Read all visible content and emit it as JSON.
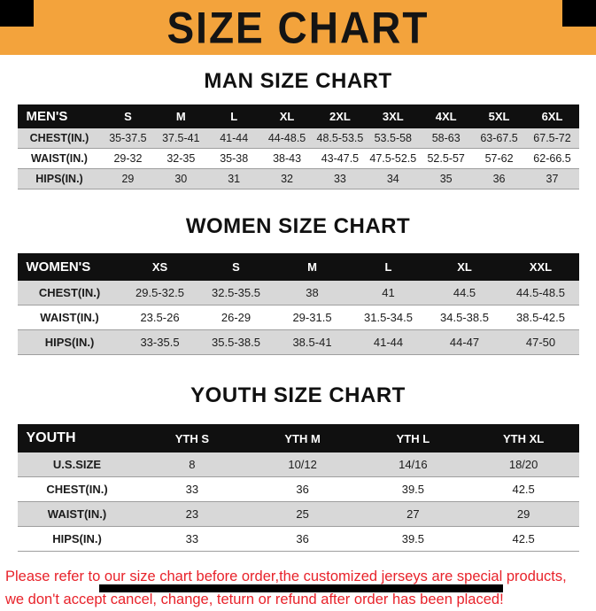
{
  "page": {
    "title": "SIZE CHART",
    "footer_line1": "Please refer to our size chart before order,the customized jerseys are special products,",
    "footer_line2": "we don't accept cancel, change, teturn or refund after order has been placed!"
  },
  "colors": {
    "banner_bg": "#F3A33C",
    "banner_corner": "#000000",
    "table_header_bg": "#101010",
    "table_header_text": "#ffffff",
    "row_gray": "#d8d8d8",
    "row_white": "#ffffff",
    "footer_text": "#E8222A"
  },
  "sections": [
    {
      "heading": "MAN SIZE CHART",
      "table": {
        "header": [
          "MEN'S",
          "S",
          "M",
          "L",
          "XL",
          "2XL",
          "3XL",
          "4XL",
          "5XL",
          "6XL"
        ],
        "rows": [
          [
            "CHEST(IN.)",
            "35-37.5",
            "37.5-41",
            "41-44",
            "44-48.5",
            "48.5-53.5",
            "53.5-58",
            "58-63",
            "63-67.5",
            "67.5-72"
          ],
          [
            "WAIST(IN.)",
            "29-32",
            "32-35",
            "35-38",
            "38-43",
            "43-47.5",
            "47.5-52.5",
            "52.5-57",
            "57-62",
            "62-66.5"
          ],
          [
            "HIPS(IN.)",
            "29",
            "30",
            "31",
            "32",
            "33",
            "34",
            "35",
            "36",
            "37"
          ]
        ]
      }
    },
    {
      "heading": "WOMEN SIZE CHART",
      "table": {
        "header": [
          "WOMEN'S",
          "XS",
          "S",
          "M",
          "L",
          "XL",
          "XXL"
        ],
        "rows": [
          [
            "CHEST(IN.)",
            "29.5-32.5",
            "32.5-35.5",
            "38",
            "41",
            "44.5",
            "44.5-48.5"
          ],
          [
            "WAIST(IN.)",
            "23.5-26",
            "26-29",
            "29-31.5",
            "31.5-34.5",
            "34.5-38.5",
            "38.5-42.5"
          ],
          [
            "HIPS(IN.)",
            "33-35.5",
            "35.5-38.5",
            "38.5-41",
            "41-44",
            "44-47",
            "47-50"
          ]
        ]
      }
    },
    {
      "heading": "YOUTH SIZE CHART",
      "table": {
        "header": [
          "YOUTH",
          "YTH S",
          "YTH M",
          "YTH L",
          "YTH XL"
        ],
        "rows": [
          [
            "U.S.SIZE",
            "8",
            "10/12",
            "14/16",
            "18/20"
          ],
          [
            "CHEST(IN.)",
            "33",
            "36",
            "39.5",
            "42.5"
          ],
          [
            "WAIST(IN.)",
            "23",
            "25",
            "27",
            "29"
          ],
          [
            "HIPS(IN.)",
            "33",
            "36",
            "39.5",
            "42.5"
          ]
        ]
      }
    }
  ]
}
